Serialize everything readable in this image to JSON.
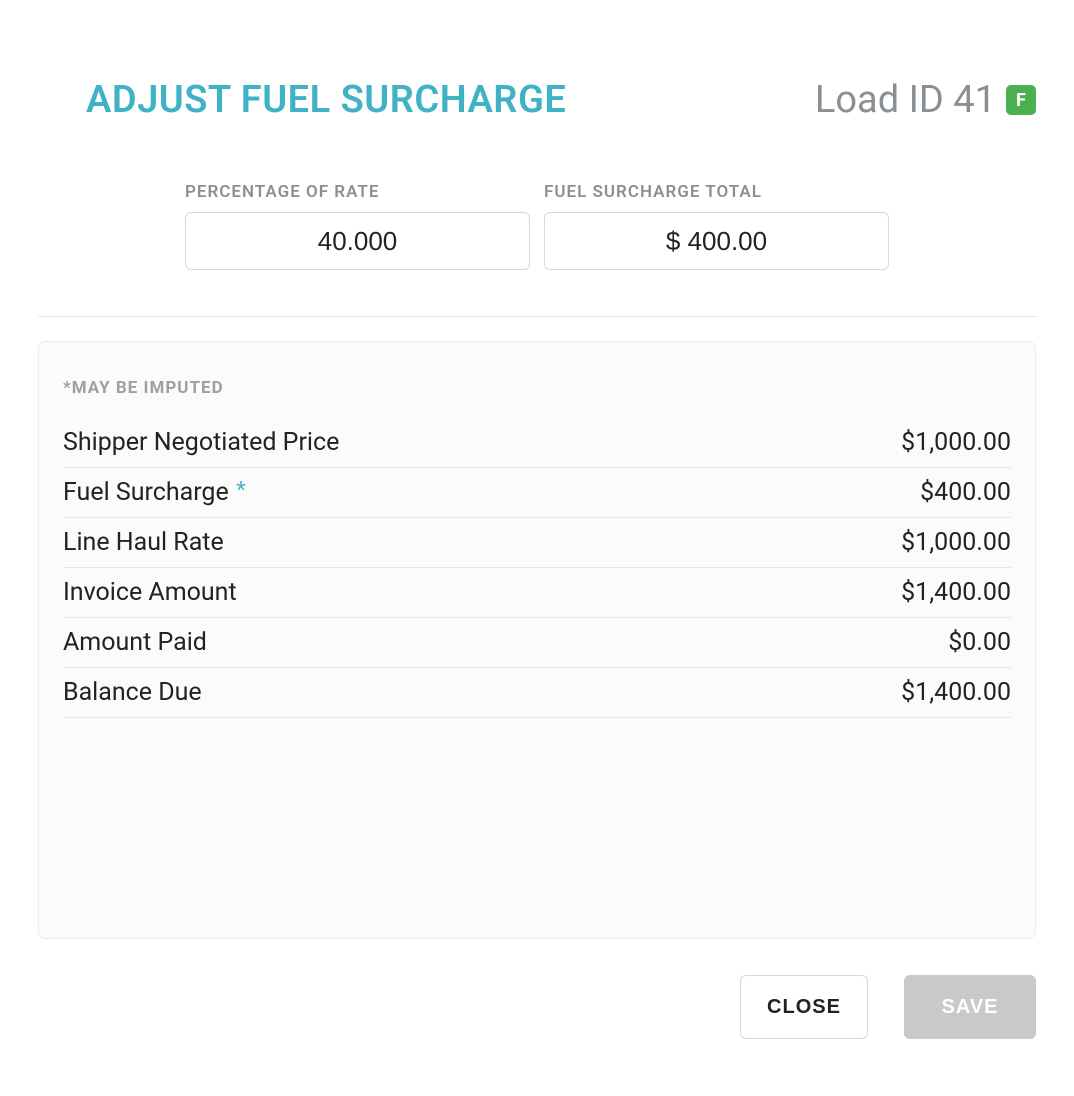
{
  "colors": {
    "accent": "#3fb2c6",
    "muted_text": "#8a8f94",
    "border": "#d6d9dc",
    "divider": "#e4e6e8",
    "panel_bg": "#fbfbfb",
    "panel_border": "#ececec",
    "badge_bg": "#4caf50",
    "save_bg": "#c7c9cb",
    "text": "#222222",
    "white": "#ffffff"
  },
  "header": {
    "title": "ADJUST FUEL SURCHARGE",
    "load_id_label": "Load ID 41",
    "badge_letter": "F"
  },
  "inputs": {
    "percentage_label": "PERCENTAGE OF RATE",
    "percentage_value": "40.000",
    "total_label": "FUEL SURCHARGE TOTAL",
    "total_value": "$ 400.00"
  },
  "panel": {
    "note": "*MAY BE IMPUTED",
    "items": [
      {
        "label": "Shipper Negotiated Price",
        "value": "$1,000.00",
        "imputed": false
      },
      {
        "label": "Fuel Surcharge",
        "value": "$400.00",
        "imputed": true
      },
      {
        "label": "Line Haul Rate",
        "value": "$1,000.00",
        "imputed": false
      },
      {
        "label": "Invoice Amount",
        "value": "$1,400.00",
        "imputed": false
      },
      {
        "label": "Amount Paid",
        "value": "$0.00",
        "imputed": false
      },
      {
        "label": "Balance Due",
        "value": "$1,400.00",
        "imputed": false
      }
    ]
  },
  "footer": {
    "close_label": "CLOSE",
    "save_label": "SAVE"
  }
}
